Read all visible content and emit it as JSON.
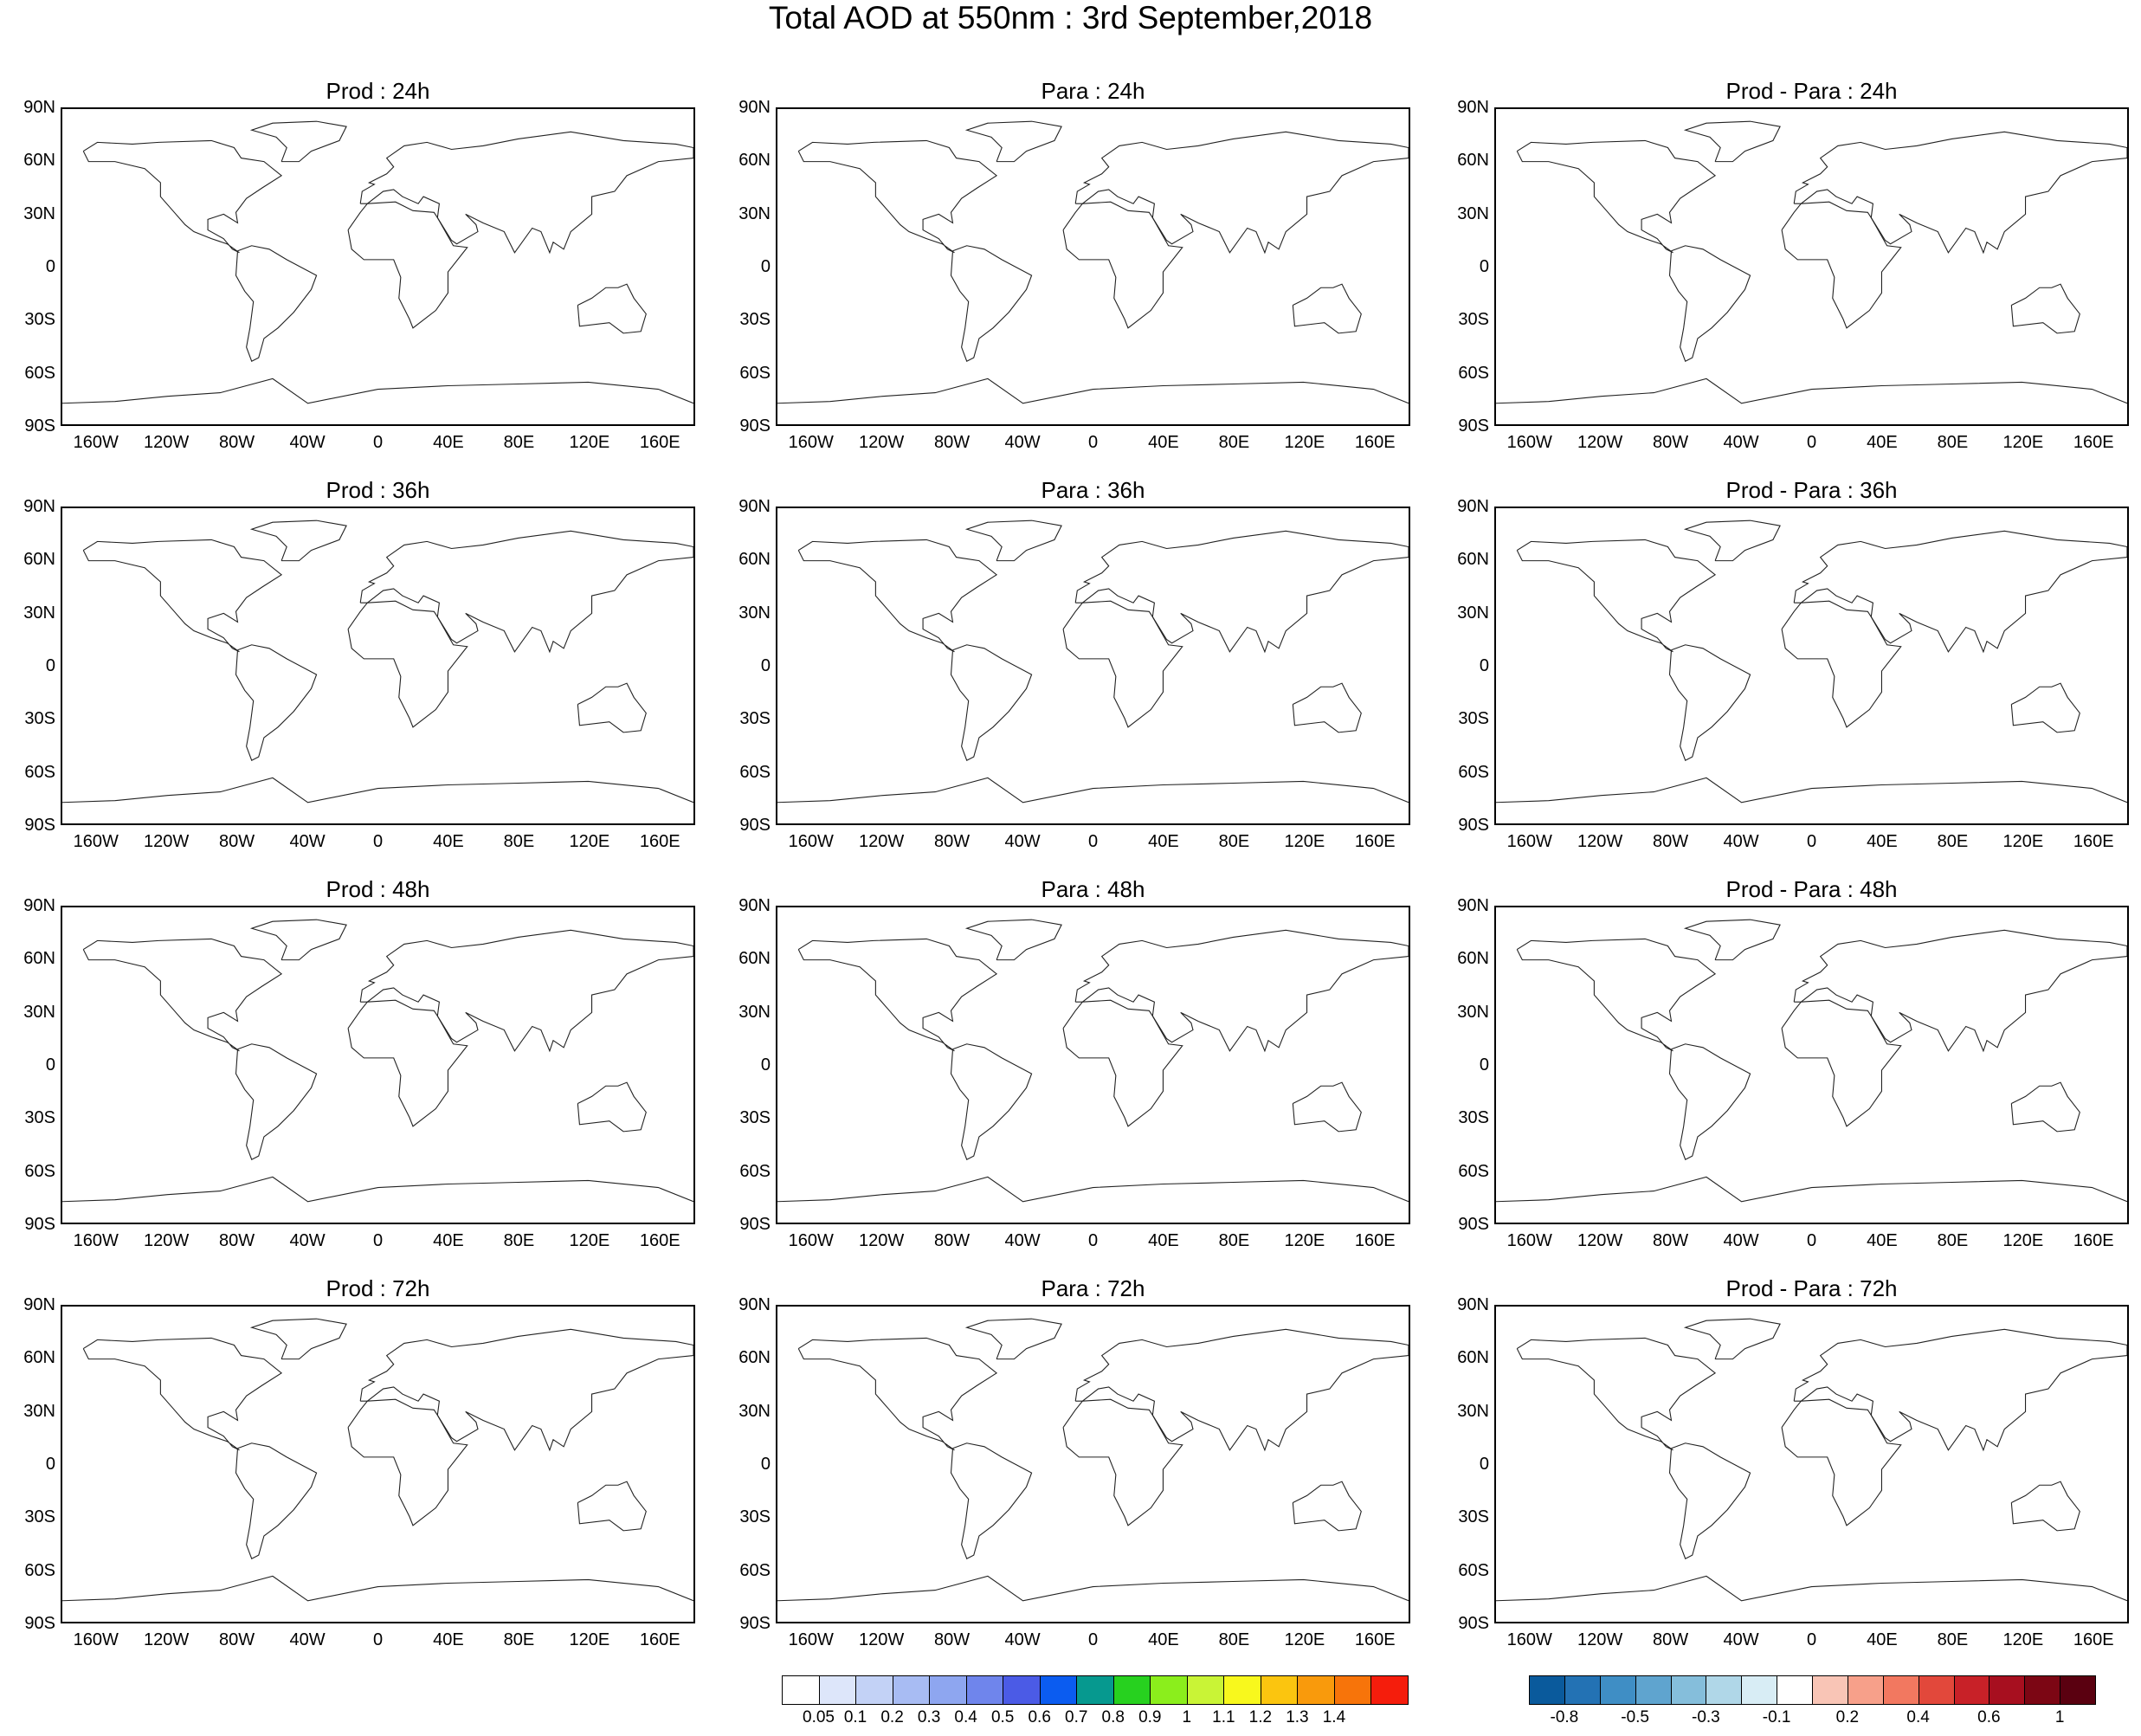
{
  "title": "Total AOD at 550nm : 3rd September,2018",
  "rows": [
    {
      "forecast": "24h",
      "panels": [
        "Prod : 24h",
        "Para : 24h",
        "Prod - Para : 24h"
      ]
    },
    {
      "forecast": "36h",
      "panels": [
        "Prod : 36h",
        "Para : 36h",
        "Prod - Para : 36h"
      ]
    },
    {
      "forecast": "48h",
      "panels": [
        "Prod : 48h",
        "Para : 48h",
        "Prod - Para : 48h"
      ]
    },
    {
      "forecast": "72h",
      "panels": [
        "Prod : 72h",
        "Para : 72h",
        "Prod - Para : 72h"
      ]
    }
  ],
  "lat_ticks": [
    "90N",
    "60N",
    "30N",
    "0",
    "30S",
    "60S",
    "90S"
  ],
  "lon_ticks": [
    "160W",
    "120W",
    "80W",
    "40W",
    "0",
    "40E",
    "80E",
    "120E",
    "160E"
  ],
  "aod_colorbar": {
    "labels": [
      "0.05",
      "0.1",
      "0.2",
      "0.3",
      "0.4",
      "0.5",
      "0.6",
      "0.7",
      "0.8",
      "0.9",
      "1",
      "1.1",
      "1.2",
      "1.3",
      "1.4"
    ],
    "colors": [
      "#ffffff",
      "#dde6fa",
      "#c3d2f6",
      "#a8bcf3",
      "#8ea6f0",
      "#6f85ec",
      "#4b5be6",
      "#0b5cf0",
      "#06998f",
      "#27d11f",
      "#8bee1c",
      "#c9f436",
      "#f8f81d",
      "#fbc50f",
      "#f99a0c",
      "#f7740a",
      "#f51d0c"
    ]
  },
  "diff_colorbar": {
    "labels": [
      "-0.8",
      "-0.5",
      "-0.3",
      "-0.1",
      "0.2",
      "0.4",
      "0.6",
      "1"
    ],
    "colors": [
      "#0a5a9c",
      "#2372b4",
      "#3f8ec5",
      "#5fa4cf",
      "#85bedb",
      "#b0d7e8",
      "#d8edf5",
      "#ffffff",
      "#f9c5b6",
      "#f7a08a",
      "#f27860",
      "#e2483b",
      "#c82128",
      "#a70f1f",
      "#7c0614",
      "#5a0010"
    ]
  }
}
